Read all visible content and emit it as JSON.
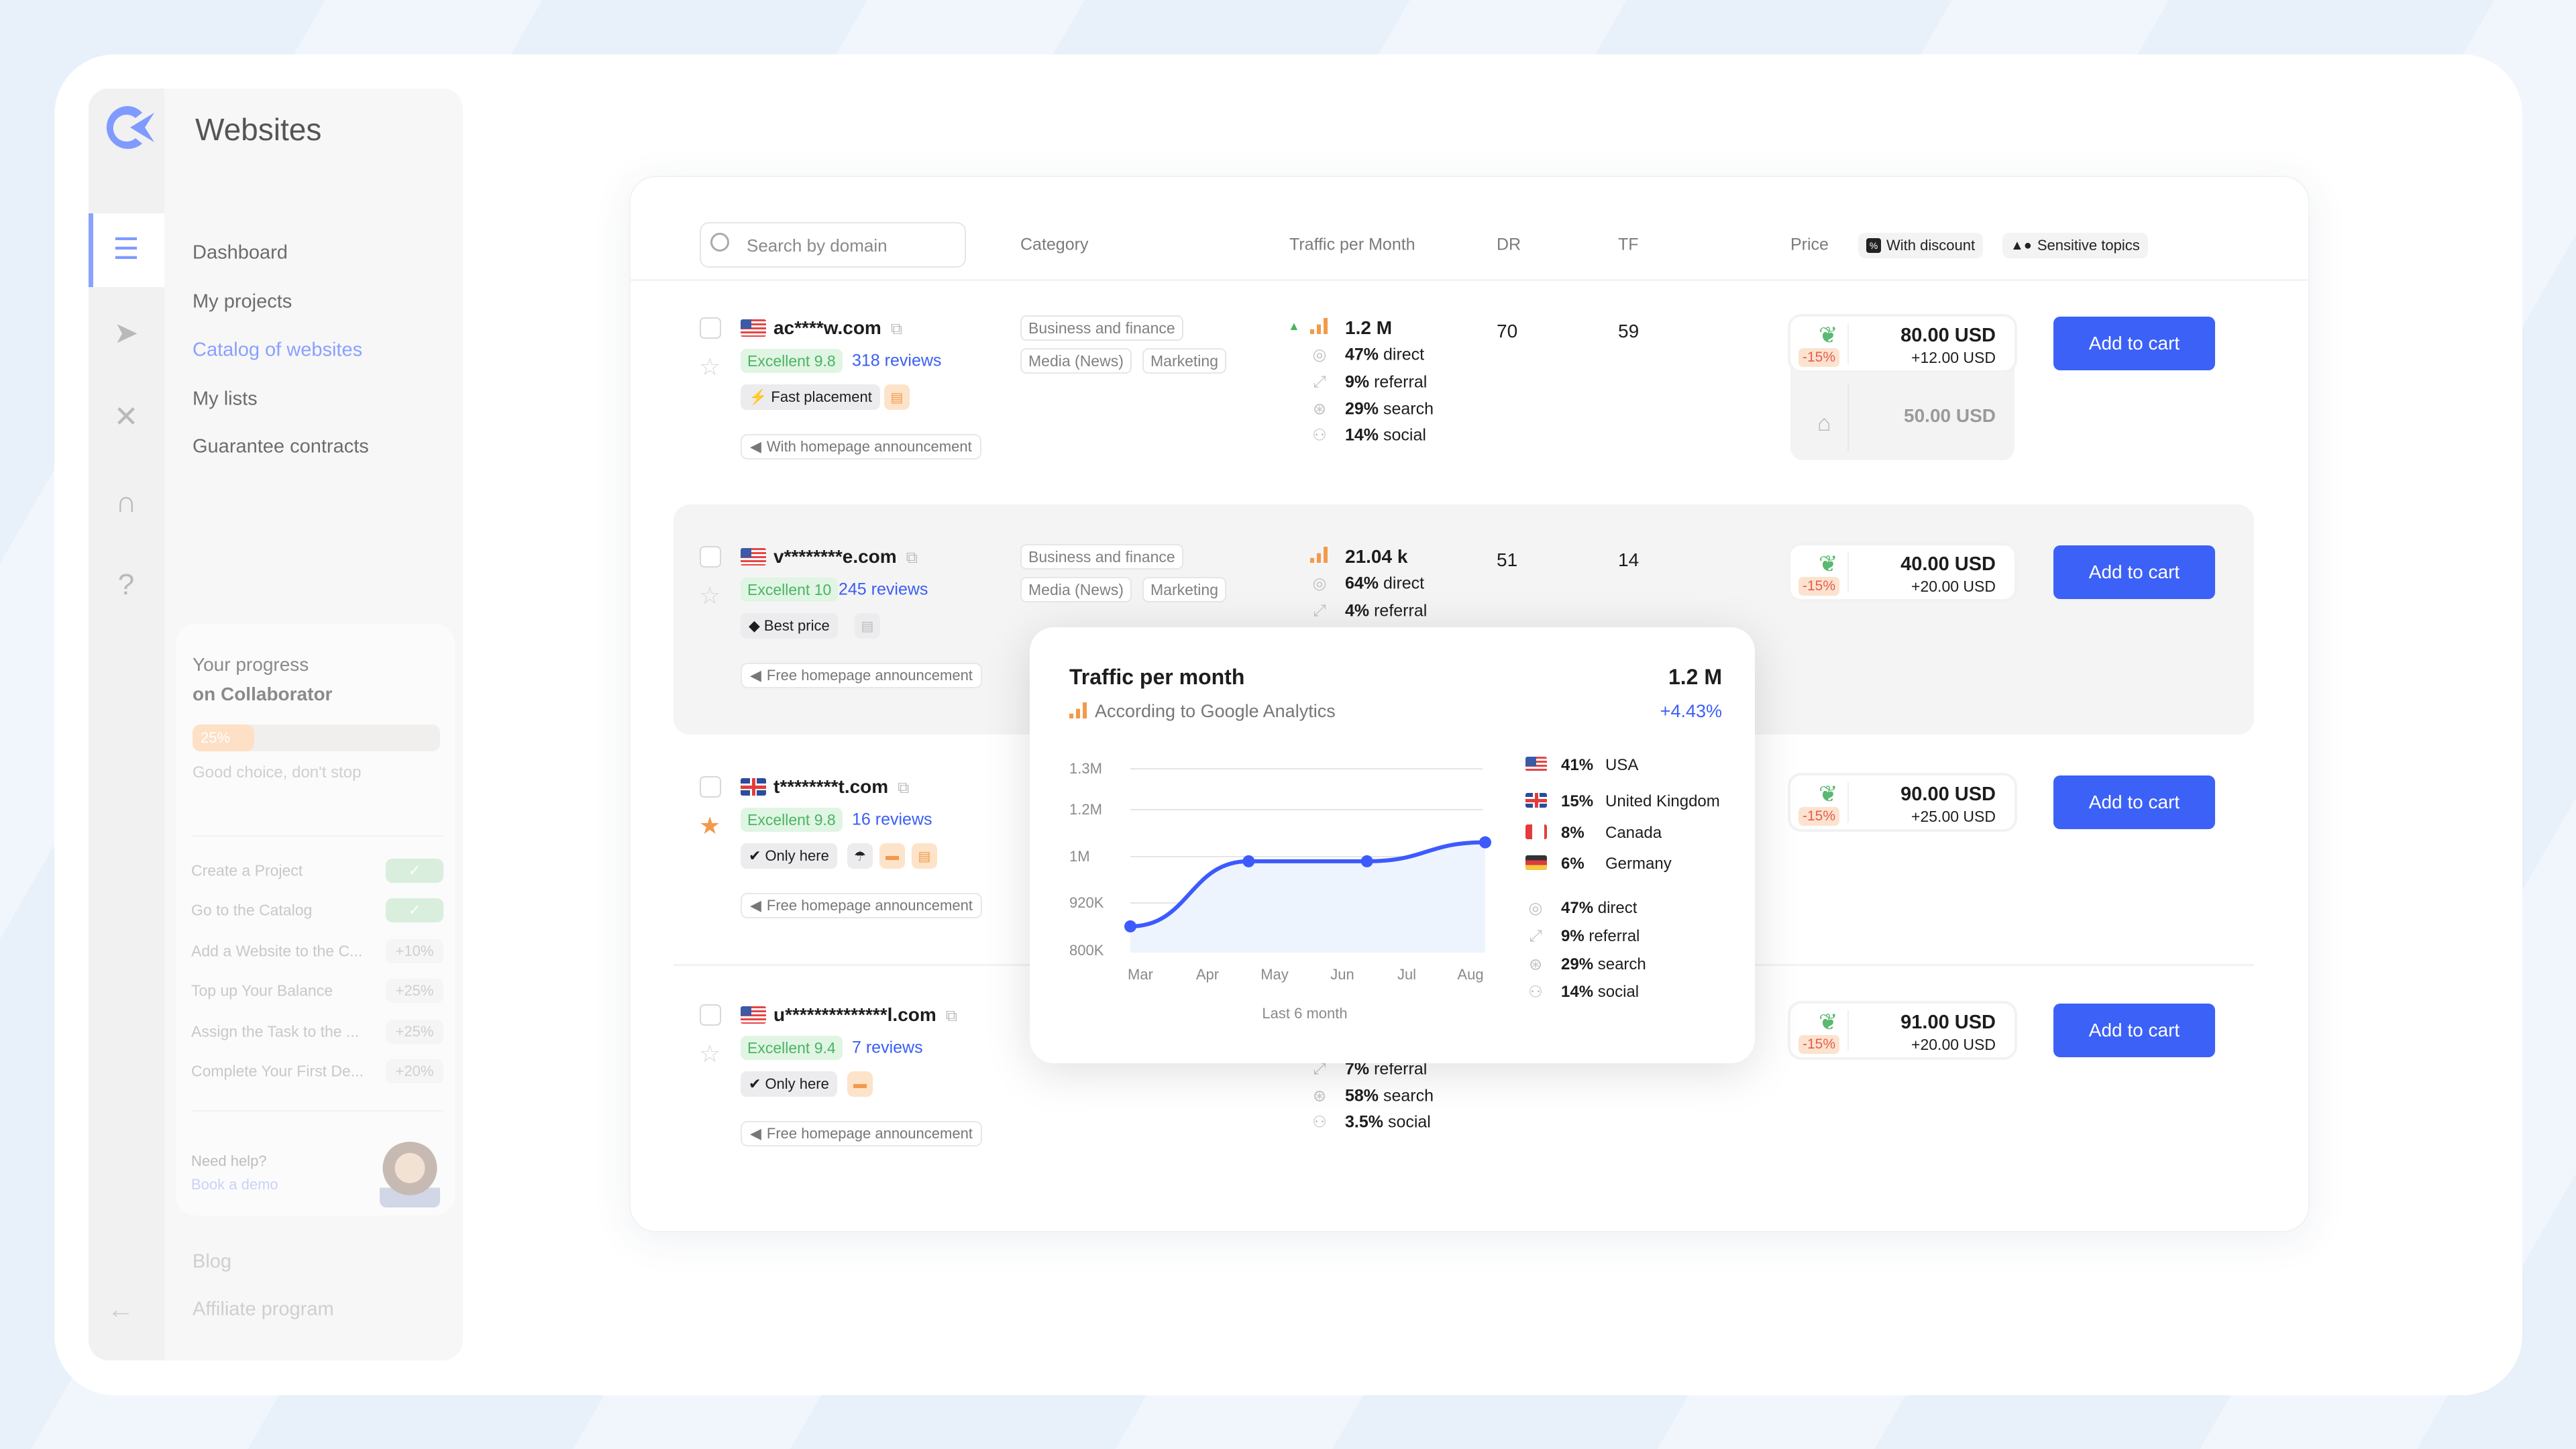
{
  "app": {
    "title": "Websites"
  },
  "sidebar": {
    "nav": [
      {
        "label": "Dashboard",
        "active": false
      },
      {
        "label": "My projects",
        "active": false
      },
      {
        "label": "Catalog of websites",
        "active": true
      },
      {
        "label": "My lists",
        "active": false
      },
      {
        "label": "Guarantee contracts",
        "active": false
      }
    ],
    "icons": [
      "list-icon",
      "paper-plane-icon",
      "tools-icon",
      "headset-icon",
      "question-chat-icon"
    ],
    "progress": {
      "title": "Your progress",
      "subtitle": "on Collaborator",
      "percent": 25,
      "percent_label": "25%",
      "message": "Good choice, don't stop",
      "tasks": [
        {
          "label": "Create a Project",
          "badge": "✓",
          "done": true
        },
        {
          "label": "Go to the Catalog",
          "badge": "✓",
          "done": true
        },
        {
          "label": "Add a Website to the C...",
          "badge": "+10%",
          "done": false
        },
        {
          "label": "Top up Your Balance",
          "badge": "+25%",
          "done": false
        },
        {
          "label": "Assign the Task to the ...",
          "badge": "+25%",
          "done": false
        },
        {
          "label": "Complete Your First De...",
          "badge": "+20%",
          "done": false
        }
      ],
      "help": "Need help?",
      "demo": "Book a demo"
    },
    "footer": [
      {
        "label": "Blog"
      },
      {
        "label": "Affiliate program"
      }
    ]
  },
  "table": {
    "search_placeholder": "Search by domain",
    "headers": {
      "category": "Category",
      "traffic": "Traffic per Month",
      "dr": "DR",
      "tf": "TF",
      "price": "Price"
    },
    "filters": [
      {
        "label": "With discount",
        "icon": "percent-icon"
      },
      {
        "label": "Sensitive topics",
        "icon": "shapes-icon"
      }
    ],
    "add_label": "Add to cart"
  },
  "rows": [
    {
      "domain": "ac****w.com",
      "flag": "us",
      "starred": false,
      "rating": "Excellent 9.8",
      "reviews": "318 reviews",
      "tag": "Fast placement",
      "tag_icon": "lightning-icon",
      "extras": [
        {
          "icon": "chat-icon",
          "style": "or"
        }
      ],
      "announcement": "With homepage announcement",
      "categories": [
        "Business and finance",
        "Media (News)",
        "Marketing"
      ],
      "trend_up": true,
      "total": "1.2 M",
      "sources": [
        {
          "pct": "47%",
          "label": "direct"
        },
        {
          "pct": "9%",
          "label": "referral"
        },
        {
          "pct": "29%",
          "label": "search"
        },
        {
          "pct": "14%",
          "label": "social"
        }
      ],
      "dr": "70",
      "tf": "59",
      "price": "80.00 USD",
      "extra": "+12.00 USD",
      "discount": "-15%",
      "homepage_price": "50.00 USD"
    },
    {
      "domain": "v********e.com",
      "flag": "us",
      "starred": false,
      "rating": "Excellent 10",
      "reviews": "245 reviews",
      "tag": "Best price",
      "tag_icon": "price-tag-icon",
      "extras": [
        {
          "icon": "chat-icon",
          "style": "gy"
        }
      ],
      "announcement": "Free homepage announcement",
      "categories": [
        "Business and finance",
        "Media (News)",
        "Marketing"
      ],
      "trend_up": false,
      "total": "21.04 k",
      "sources": [
        {
          "pct": "64%",
          "label": "direct"
        },
        {
          "pct": "4%",
          "label": "referral"
        }
      ],
      "dr": "51",
      "tf": "14",
      "price": "40.00 USD",
      "extra": "+20.00 USD",
      "discount": "-15%"
    },
    {
      "domain": "t********t.com",
      "flag": "uk",
      "starred": true,
      "rating": "Excellent 9.8",
      "reviews": "16 reviews",
      "tag": "Only here",
      "tag_icon": "check-circle-icon",
      "extras": [
        {
          "icon": "umbrella-icon",
          "style": "gr"
        },
        {
          "icon": "briefcase-icon",
          "style": "or"
        },
        {
          "icon": "chat-icon",
          "style": "or"
        }
      ],
      "announcement": "Free homepage announcement",
      "categories": [],
      "sources": [],
      "price": "90.00 USD",
      "extra": "+25.00 USD",
      "discount": "-15%"
    },
    {
      "domain": "u**************l.com",
      "flag": "us",
      "starred": false,
      "rating": "Excellent 9.4",
      "reviews": "7 reviews",
      "tag": "Only here",
      "tag_icon": "check-circle-icon",
      "extras": [
        {
          "icon": "briefcase-icon",
          "style": "or"
        }
      ],
      "announcement": "Free homepage announcement",
      "categories": [],
      "sources_partial": [
        {
          "pct": "7%",
          "label": "referral"
        },
        {
          "pct": "58%",
          "label": "search"
        },
        {
          "pct": "3.5%",
          "label": "social"
        }
      ],
      "price": "91.00 USD",
      "extra": "+20.00 USD",
      "discount": "-15%"
    }
  ],
  "popup": {
    "title": "Traffic per month",
    "total": "1.2 M",
    "subtitle": "According to Google Analytics",
    "change": "+4.43%",
    "countries": [
      {
        "flag": "us",
        "pct": "41%",
        "name": "USA"
      },
      {
        "flag": "uk",
        "pct": "15%",
        "name": "United Kingdom"
      },
      {
        "flag": "ca",
        "pct": "8%",
        "name": "Canada"
      },
      {
        "flag": "de",
        "pct": "6%",
        "name": "Germany"
      }
    ],
    "sources": [
      {
        "pct": "47%",
        "label": "direct"
      },
      {
        "pct": "9%",
        "label": "referral"
      },
      {
        "pct": "29%",
        "label": "search"
      },
      {
        "pct": "14%",
        "label": "social"
      }
    ]
  },
  "chart_data": {
    "type": "area",
    "xlabel": "Last 6 month",
    "x_ticks": [
      "Mar",
      "Apr",
      "May",
      "Jun",
      "Jul",
      "Aug"
    ],
    "y_ticks": [
      {
        "label": "1.3M",
        "value": 1300000
      },
      {
        "label": "1.2M",
        "value": 1200000
      },
      {
        "label": "1M",
        "value": 1000000
      },
      {
        "label": "920K",
        "value": 920000
      },
      {
        "label": "800K",
        "value": 800000
      }
    ],
    "values": [
      861000,
      992000,
      992000,
      1061000
    ],
    "grid": true,
    "colors": {
      "line": "#3d5afe",
      "fill": "#eef4fd"
    }
  },
  "colors": {
    "accent": "#3c61f7",
    "rating_green": "#4bb463",
    "orange": "#f29a4a",
    "discount_red": "#ea5a4c"
  }
}
